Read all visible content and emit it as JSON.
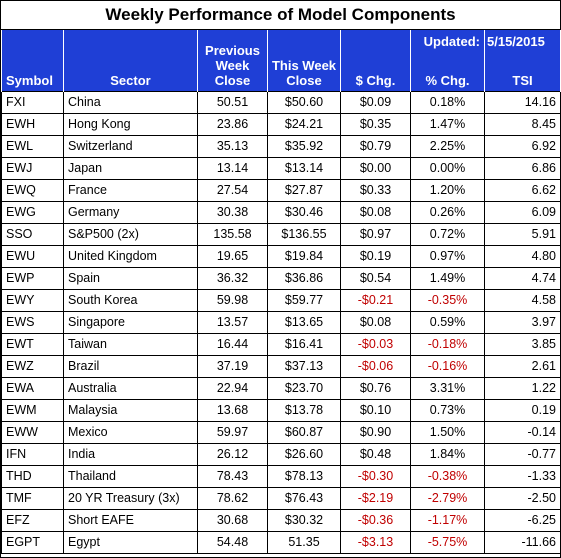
{
  "title": "Weekly Performance of Model Components",
  "headers": {
    "symbol": "Symbol",
    "sector": "Sector",
    "prev_close": "Previous Week Close",
    "this_close": "This Week Close",
    "dollar_chg": "$ Chg.",
    "pct_chg": "% Chg.",
    "tsi": "TSI",
    "updated_label": "Updated:",
    "updated_date": "5/15/2015"
  },
  "rows": [
    {
      "symbol": "FXI",
      "sector": "China",
      "prev": "50.51",
      "this": "$50.60",
      "dchg": "$0.09",
      "pchg": "0.18%",
      "tsi": "14.16"
    },
    {
      "symbol": "EWH",
      "sector": "Hong Kong",
      "prev": "23.86",
      "this": "$24.21",
      "dchg": "$0.35",
      "pchg": "1.47%",
      "tsi": "8.45"
    },
    {
      "symbol": "EWL",
      "sector": "Switzerland",
      "prev": "35.13",
      "this": "$35.92",
      "dchg": "$0.79",
      "pchg": "2.25%",
      "tsi": "6.92"
    },
    {
      "symbol": "EWJ",
      "sector": "Japan",
      "prev": "13.14",
      "this": "$13.14",
      "dchg": "$0.00",
      "pchg": "0.00%",
      "tsi": "6.86"
    },
    {
      "symbol": "EWQ",
      "sector": "France",
      "prev": "27.54",
      "this": "$27.87",
      "dchg": "$0.33",
      "pchg": "1.20%",
      "tsi": "6.62"
    },
    {
      "symbol": "EWG",
      "sector": "Germany",
      "prev": "30.38",
      "this": "$30.46",
      "dchg": "$0.08",
      "pchg": "0.26%",
      "tsi": "6.09"
    },
    {
      "symbol": "SSO",
      "sector": "S&P500 (2x)",
      "prev": "135.58",
      "this": "$136.55",
      "dchg": "$0.97",
      "pchg": "0.72%",
      "tsi": "5.91"
    },
    {
      "symbol": "EWU",
      "sector": "United Kingdom",
      "prev": "19.65",
      "this": "$19.84",
      "dchg": "$0.19",
      "pchg": "0.97%",
      "tsi": "4.80"
    },
    {
      "symbol": "EWP",
      "sector": "Spain",
      "prev": "36.32",
      "this": "$36.86",
      "dchg": "$0.54",
      "pchg": "1.49%",
      "tsi": "4.74"
    },
    {
      "symbol": "EWY",
      "sector": "South Korea",
      "prev": "59.98",
      "this": "$59.77",
      "dchg": "-$0.21",
      "pchg": "-0.35%",
      "tsi": "4.58"
    },
    {
      "symbol": "EWS",
      "sector": "Singapore",
      "prev": "13.57",
      "this": "$13.65",
      "dchg": "$0.08",
      "pchg": "0.59%",
      "tsi": "3.97"
    },
    {
      "symbol": "EWT",
      "sector": "Taiwan",
      "prev": "16.44",
      "this": "$16.41",
      "dchg": "-$0.03",
      "pchg": "-0.18%",
      "tsi": "3.85"
    },
    {
      "symbol": "EWZ",
      "sector": "Brazil",
      "prev": "37.19",
      "this": "$37.13",
      "dchg": "-$0.06",
      "pchg": "-0.16%",
      "tsi": "2.61"
    },
    {
      "symbol": "EWA",
      "sector": "Australia",
      "prev": "22.94",
      "this": "$23.70",
      "dchg": "$0.76",
      "pchg": "3.31%",
      "tsi": "1.22"
    },
    {
      "symbol": "EWM",
      "sector": "Malaysia",
      "prev": "13.68",
      "this": "$13.78",
      "dchg": "$0.10",
      "pchg": "0.73%",
      "tsi": "0.19"
    },
    {
      "symbol": "EWW",
      "sector": "Mexico",
      "prev": "59.97",
      "this": "$60.87",
      "dchg": "$0.90",
      "pchg": "1.50%",
      "tsi": "-0.14"
    },
    {
      "symbol": "IFN",
      "sector": "India",
      "prev": "26.12",
      "this": "$26.60",
      "dchg": "$0.48",
      "pchg": "1.84%",
      "tsi": "-0.77"
    },
    {
      "symbol": "THD",
      "sector": "Thailand",
      "prev": "78.43",
      "this": "$78.13",
      "dchg": "-$0.30",
      "pchg": "-0.38%",
      "tsi": "-1.33"
    },
    {
      "symbol": "TMF",
      "sector": "20 YR Treasury  (3x)",
      "prev": "78.62",
      "this": "$76.43",
      "dchg": "-$2.19",
      "pchg": "-2.79%",
      "tsi": "-2.50"
    },
    {
      "symbol": "EFZ",
      "sector": "Short EAFE",
      "prev": "30.68",
      "this": "$30.32",
      "dchg": "-$0.36",
      "pchg": "-1.17%",
      "tsi": "-6.25"
    },
    {
      "symbol": "EGPT",
      "sector": "Egypt",
      "prev": "54.48",
      "this": "51.35",
      "dchg": "-$3.13",
      "pchg": "-5.75%",
      "tsi": "-11.66"
    }
  ],
  "colors": {
    "header_bg": "#1f3fd6",
    "header_text": "#ffffff",
    "negative": "#c00000"
  }
}
